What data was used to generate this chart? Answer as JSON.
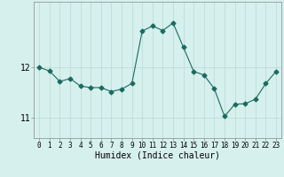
{
  "x": [
    0,
    1,
    2,
    3,
    4,
    5,
    6,
    7,
    8,
    9,
    10,
    11,
    12,
    13,
    14,
    15,
    16,
    17,
    18,
    19,
    20,
    21,
    22,
    23
  ],
  "y": [
    12.0,
    11.93,
    11.72,
    11.78,
    11.63,
    11.6,
    11.6,
    11.52,
    11.57,
    11.68,
    12.72,
    12.82,
    12.73,
    12.88,
    12.4,
    11.92,
    11.85,
    11.58,
    11.03,
    11.27,
    11.28,
    11.37,
    11.68,
    11.92
  ],
  "line_color": "#1a6b5e",
  "marker": "D",
  "markersize": 2.5,
  "linewidth": 0.8,
  "bg_color": "#d6f0ee",
  "grid_color": "#b8d8d4",
  "xlabel": "Humidex (Indice chaleur)",
  "xlabel_fontsize": 7,
  "ytick_labels": [
    "11",
    "12"
  ],
  "ytick_values": [
    11,
    12
  ],
  "ylim": [
    10.6,
    13.3
  ],
  "xlim": [
    -0.5,
    23.5
  ],
  "xtick_fontsize": 5.5,
  "ytick_fontsize": 7
}
